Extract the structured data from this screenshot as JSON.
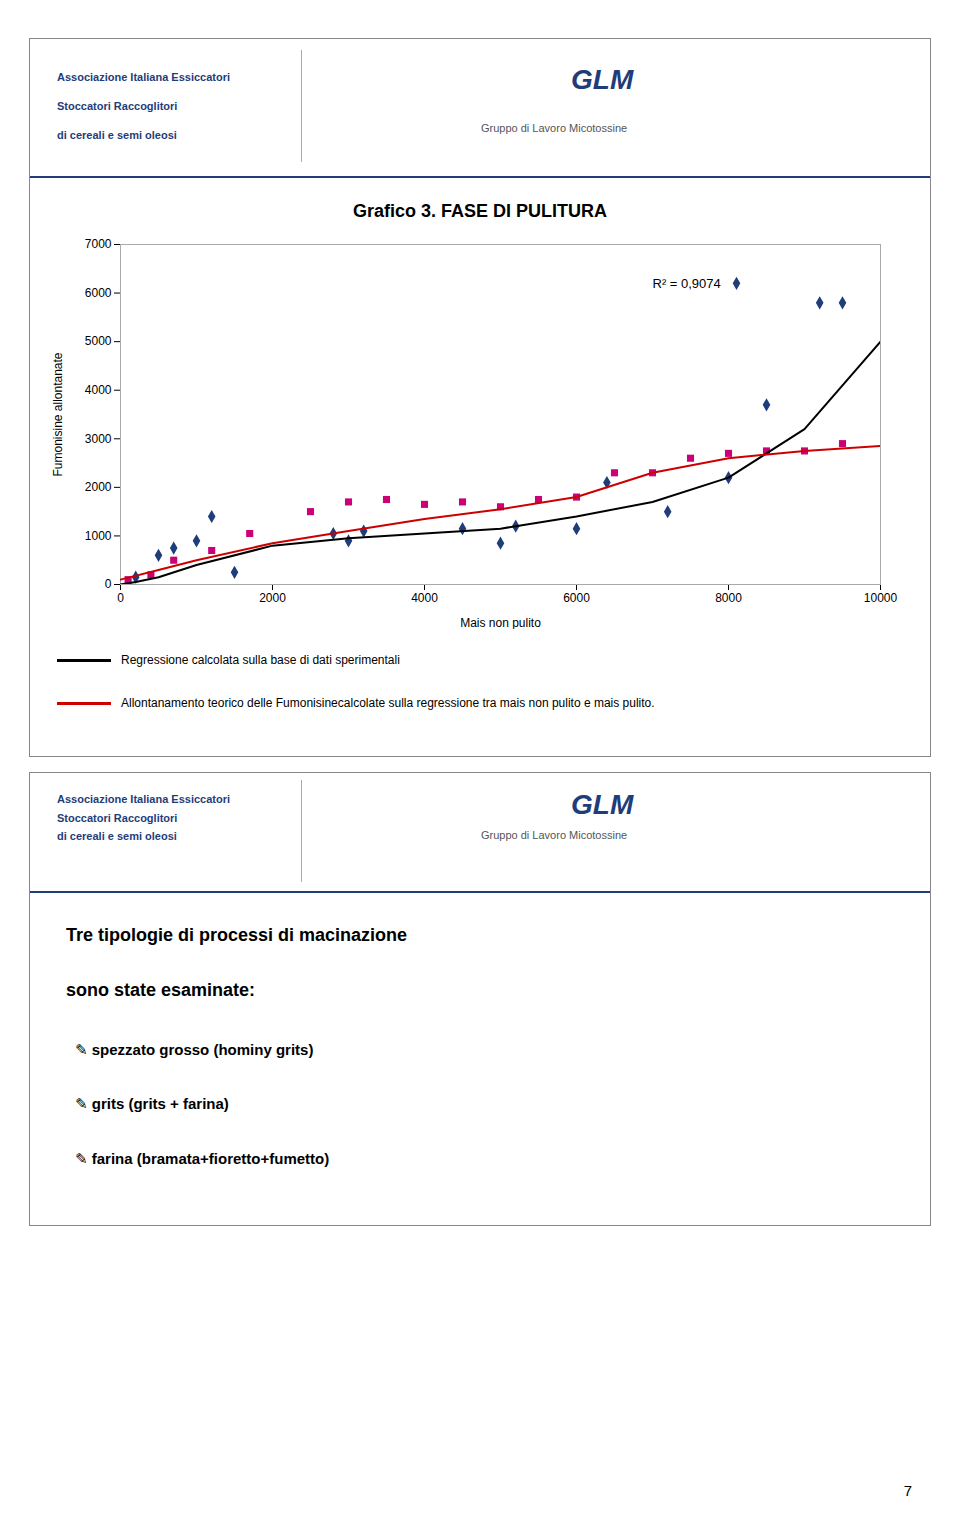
{
  "chart_data": {
    "type": "scatter",
    "title": "Grafico 3. FASE DI PULITURA",
    "xlabel": "Mais non pulito",
    "ylabel": "Fumonisine allontanate",
    "xlim": [
      0,
      10000
    ],
    "ylim": [
      0,
      7000
    ],
    "xticks": [
      0,
      2000,
      4000,
      6000,
      8000,
      10000
    ],
    "yticks": [
      0,
      1000,
      2000,
      3000,
      4000,
      5000,
      6000,
      7000
    ],
    "series": [
      {
        "type": "scatter",
        "marker": "diamond",
        "color": "#1f3d7a",
        "x": [
          200,
          500,
          700,
          1000,
          1200,
          1500,
          2800,
          3000,
          3200,
          4500,
          5000,
          5200,
          6000,
          6400,
          7200,
          8000,
          8500,
          9200,
          9500
        ],
        "values": [
          150,
          600,
          750,
          900,
          1400,
          250,
          1050,
          900,
          1100,
          1150,
          850,
          1200,
          1150,
          2100,
          1500,
          2200,
          3700,
          5800,
          5800
        ]
      },
      {
        "type": "scatter",
        "marker": "square",
        "color": "#cc0077",
        "x": [
          100,
          400,
          700,
          1200,
          1700,
          2500,
          3000,
          3500,
          4000,
          4500,
          5000,
          5500,
          6000,
          6500,
          7000,
          7500,
          8000,
          8500,
          9000,
          9500
        ],
        "values": [
          100,
          200,
          500,
          700,
          1050,
          1500,
          1700,
          1750,
          1650,
          1700,
          1600,
          1750,
          1800,
          2300,
          2300,
          2600,
          2700,
          2750,
          2750,
          2900
        ]
      },
      {
        "name": "Regressione calcolata sulla base di dati sperimentali",
        "type": "line",
        "color": "#000000",
        "x": [
          0,
          200,
          500,
          1000,
          2000,
          3000,
          4000,
          5000,
          6000,
          7000,
          8000,
          9000,
          10000
        ],
        "values": [
          0,
          50,
          150,
          400,
          800,
          950,
          1050,
          1150,
          1400,
          1700,
          2200,
          3200,
          5000
        ]
      },
      {
        "name": "Allontanamento teorico delle Fumonisinecalcolate sulla regressione tra mais non pulito e mais pulito.",
        "type": "line",
        "color": "#cc0000",
        "x": [
          0,
          500,
          1000,
          2000,
          3000,
          4000,
          5000,
          6000,
          7000,
          8000,
          9000,
          10000
        ],
        "values": [
          100,
          300,
          500,
          850,
          1100,
          1350,
          1550,
          1800,
          2300,
          2600,
          2750,
          2850
        ]
      }
    ],
    "annotations": [
      {
        "text": "R² = 0,9074",
        "x": 7000,
        "y": 6200
      },
      {
        "text": "Associazione Italiana Essiccatori"
      },
      {
        "text": "Stoccatori Raccoglitori"
      },
      {
        "text": "di cereali e semi oleosi"
      },
      {
        "text": "GLM"
      },
      {
        "text": "Gruppo di Lavoro Micotossine"
      },
      {
        "text": "Associazione Italiana Essiccatori"
      },
      {
        "text": "Stoccatori Raccoglitori"
      },
      {
        "text": "di cereali e semi oleosi"
      },
      {
        "text": "GLM"
      },
      {
        "text": "Gruppo di Lavoro Micotossine"
      },
      {
        "text": "Tre tipologie di processi di macinazione"
      },
      {
        "text": "sono state esaminate:"
      },
      {
        "text": "✎ spezzato grosso (hominy grits)"
      },
      {
        "text": "✎ grits (grits + farina)"
      },
      {
        "text": "✎ farina (bramata+fioretto+fumetto)"
      },
      {
        "text": "7"
      }
    ],
    "legend": "bottom"
  }
}
